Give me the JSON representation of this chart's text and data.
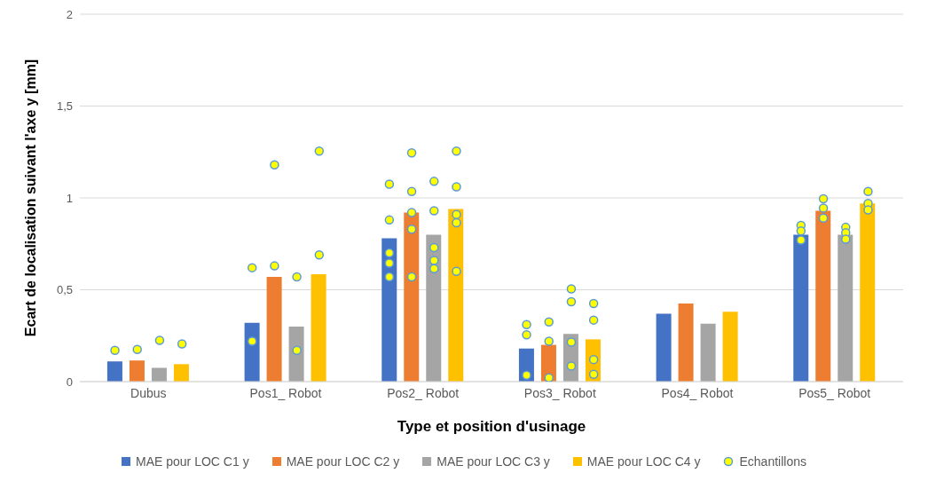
{
  "chart_data": {
    "type": "bar",
    "xlabel": "Type et position d'usinage",
    "ylabel": "Ecart de localisation suivant l'axe y [mm]",
    "categories": [
      "Dubus",
      "Pos1_ Robot",
      "Pos2_ Robot",
      "Pos3_ Robot",
      "Pos4_ Robot",
      "Pos5_ Robot"
    ],
    "series": [
      {
        "name": "MAE pour LOC C1 y",
        "color": "#4472c4",
        "values": [
          0.11,
          0.32,
          0.78,
          0.18,
          0.37,
          0.8
        ]
      },
      {
        "name": "MAE pour LOC C2 y",
        "color": "#ed7d31",
        "values": [
          0.115,
          0.57,
          0.92,
          0.2,
          0.425,
          0.93
        ]
      },
      {
        "name": "MAE pour LOC C3 y",
        "color": "#a5a5a5",
        "values": [
          0.075,
          0.3,
          0.8,
          0.26,
          0.315,
          0.8
        ]
      },
      {
        "name": "MAE pour LOC C4 y",
        "color": "#ffc000",
        "values": [
          0.095,
          0.585,
          0.94,
          0.23,
          0.38,
          0.97
        ]
      },
      {
        "name": "Echantillons",
        "type": "scatter",
        "color": "#ffff00",
        "x": [
          "Dubus",
          "Pos1_ Robot",
          "Pos1_ Robot",
          "Pos2_ Robot",
          "Pos2_ Robot",
          "Pos2_ Robot",
          "Pos2_ Robot",
          "Pos2_ Robot",
          "Pos3_ Robot",
          "Pos3_ Robot",
          "Pos3_ Robot",
          "Pos5_ Robot",
          "Pos5_ Robot",
          "Pos5_ Robot"
        ],
        "values": [
          0.17,
          0.62,
          0.22,
          1.075,
          0.88,
          0.7,
          0.645,
          0.57,
          0.31,
          0.255,
          0.035,
          0.85,
          0.82,
          0.77
        ]
      },
      {
        "type": "scatter",
        "color": "#ffff00",
        "x": [
          "Dubus",
          "Pos1_ Robot",
          "Pos1_ Robot",
          "Pos2_ Robot",
          "Pos2_ Robot",
          "Pos2_ Robot",
          "Pos2_ Robot",
          "Pos2_ Robot",
          "Pos3_ Robot",
          "Pos3_ Robot",
          "Pos3_ Robot",
          "Pos5_ Robot",
          "Pos5_ Robot",
          "Pos5_ Robot"
        ],
        "values": [
          0.175,
          1.18,
          0.63,
          1.245,
          1.035,
          0.92,
          0.83,
          0.57,
          0.325,
          0.22,
          0.02,
          0.995,
          0.945,
          0.89
        ]
      },
      {
        "type": "scatter",
        "color": "#ffff00",
        "x": [
          "Dubus",
          "Pos1_ Robot",
          "Pos1_ Robot",
          "Pos2_ Robot",
          "Pos2_ Robot",
          "Pos2_ Robot",
          "Pos2_ Robot",
          "Pos2_ Robot",
          "Pos3_ Robot",
          "Pos3_ Robot",
          "Pos3_ Robot",
          "Pos3_ Robot",
          "Pos5_ Robot",
          "Pos5_ Robot",
          "Pos5_ Robot"
        ],
        "values": [
          0.225,
          0.57,
          0.17,
          1.09,
          0.93,
          0.73,
          0.66,
          0.615,
          0.505,
          0.435,
          0.215,
          0.085,
          0.84,
          0.81,
          0.775
        ]
      },
      {
        "type": "scatter",
        "color": "#ffff00",
        "x": [
          "Dubus",
          "Pos1_ Robot",
          "Pos1_ Robot",
          "Pos2_ Robot",
          "Pos2_ Robot",
          "Pos2_ Robot",
          "Pos2_ Robot",
          "Pos2_ Robot",
          "Pos3_ Robot",
          "Pos3_ Robot",
          "Pos3_ Robot",
          "Pos3_ Robot",
          "Pos5_ Robot",
          "Pos5_ Robot",
          "Pos5_ Robot"
        ],
        "values": [
          0.205,
          1.255,
          0.69,
          1.255,
          1.06,
          0.91,
          0.865,
          0.6,
          0.425,
          0.335,
          0.12,
          0.04,
          1.035,
          0.97,
          0.935
        ]
      }
    ],
    "ylim": [
      0,
      2
    ],
    "yticks": [
      0,
      {
        "value": 0.5,
        "label": "0,5"
      },
      1,
      {
        "value": 1.5,
        "label": "1,5"
      },
      2
    ],
    "grid": "y",
    "legend": "bottom",
    "marker": "circle"
  }
}
